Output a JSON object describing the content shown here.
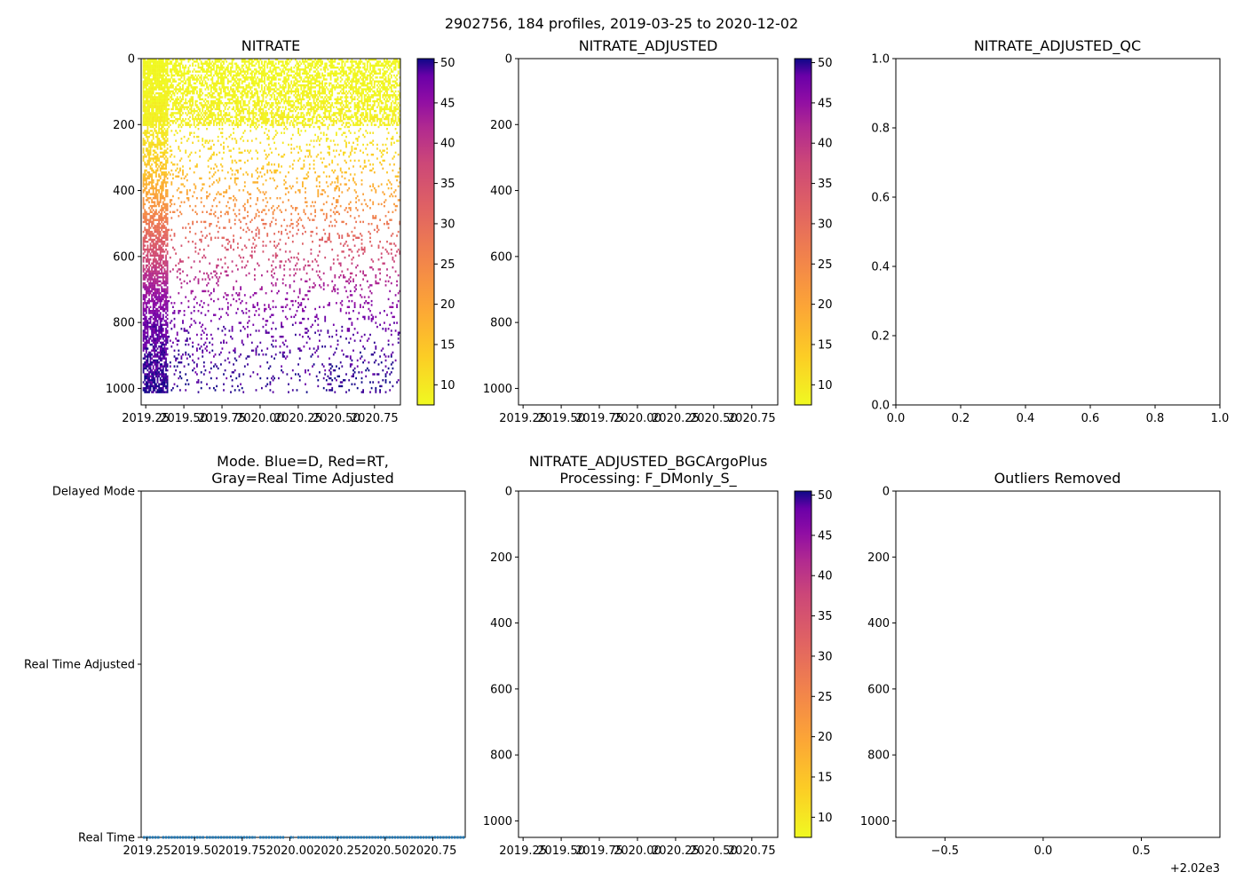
{
  "suptitle": "2902756, 184 profiles, 2019-03-25 to 2020-12-02",
  "colors": {
    "axis": "#000000",
    "mode_series": "#1f77b4"
  },
  "chart_data": [
    {
      "type": "heatmap",
      "title": "NITRATE",
      "xlim": [
        2019.22,
        2020.92
      ],
      "ylim": [
        1050,
        0
      ],
      "xticks": [
        2019.25,
        2019.5,
        2019.75,
        2020.0,
        2020.25,
        2020.5,
        2020.75
      ],
      "xtick_labels": [
        "2019.25",
        "2019.50",
        "2019.75",
        "2020.00",
        "2020.25",
        "2020.50",
        "2020.75"
      ],
      "yticks": [
        0,
        200,
        400,
        600,
        800,
        1000
      ],
      "ytick_labels": [
        "0",
        "200",
        "400",
        "600",
        "800",
        "1000"
      ],
      "has_data": true,
      "profiles": 184,
      "time_start": 2019.23,
      "time_end": 2020.92,
      "colormap": "plasma_r",
      "nitrate_depth_profile": [
        {
          "depth": 0,
          "value": 7
        },
        {
          "depth": 200,
          "value": 9
        },
        {
          "depth": 300,
          "value": 13
        },
        {
          "depth": 400,
          "value": 19
        },
        {
          "depth": 500,
          "value": 28
        },
        {
          "depth": 600,
          "value": 37
        },
        {
          "depth": 700,
          "value": 44
        },
        {
          "depth": 800,
          "value": 48
        },
        {
          "depth": 1000,
          "value": 50
        }
      ],
      "colorbar": {
        "vmin": 7.5,
        "vmax": 50.5,
        "ticks": [
          10,
          15,
          20,
          25,
          30,
          35,
          40,
          45,
          50
        ],
        "tick_labels": [
          "10",
          "15",
          "20",
          "25",
          "30",
          "35",
          "40",
          "45",
          "50"
        ]
      }
    },
    {
      "type": "heatmap",
      "title": "NITRATE_ADJUSTED",
      "xlim": [
        2019.22,
        2020.92
      ],
      "ylim": [
        1050,
        0
      ],
      "xticks": [
        2019.25,
        2019.5,
        2019.75,
        2020.0,
        2020.25,
        2020.5,
        2020.75
      ],
      "xtick_labels": [
        "2019.25",
        "2019.50",
        "2019.75",
        "2020.00",
        "2020.25",
        "2020.50",
        "2020.75"
      ],
      "yticks": [
        0,
        200,
        400,
        600,
        800,
        1000
      ],
      "ytick_labels": [
        "0",
        "200",
        "400",
        "600",
        "800",
        "1000"
      ],
      "has_data": false,
      "colorbar": {
        "vmin": 7.5,
        "vmax": 50.5,
        "ticks": [
          10,
          15,
          20,
          25,
          30,
          35,
          40,
          45,
          50
        ],
        "tick_labels": [
          "10",
          "15",
          "20",
          "25",
          "30",
          "35",
          "40",
          "45",
          "50"
        ]
      }
    },
    {
      "type": "scatter",
      "title": "NITRATE_ADJUSTED_QC",
      "xlim": [
        0,
        1
      ],
      "ylim": [
        0,
        1
      ],
      "xticks": [
        0,
        0.2,
        0.4,
        0.6,
        0.8,
        1.0
      ],
      "xtick_labels": [
        "0.0",
        "0.2",
        "0.4",
        "0.6",
        "0.8",
        "1.0"
      ],
      "yticks": [
        0,
        0.2,
        0.4,
        0.6,
        0.8,
        1.0
      ],
      "ytick_labels": [
        "0.0",
        "0.2",
        "0.4",
        "0.6",
        "0.8",
        "1.0"
      ],
      "has_data": false
    },
    {
      "type": "scatter",
      "title_lines": [
        "Mode. Blue=D, Red=RT,",
        "Gray=Real Time Adjusted"
      ],
      "xlim": [
        2019.22,
        2020.92
      ],
      "ylim": [
        0,
        2
      ],
      "xticks": [
        2019.25,
        2019.5,
        2019.75,
        2020.0,
        2020.25,
        2020.5,
        2020.75
      ],
      "xtick_labels": [
        "2019.25",
        "2019.50",
        "2019.75",
        "2020.00",
        "2020.25",
        "2020.50",
        "2020.75"
      ],
      "yticks": [
        2,
        1,
        0
      ],
      "ytick_labels": [
        "Delayed Mode",
        "Real Time Adjusted",
        "Real Time"
      ],
      "mode_value": 0,
      "series": [
        {
          "name": "Real Time",
          "y": 0,
          "segments": [
            [
              2019.23,
              2019.32
            ],
            [
              2019.33,
              2019.55
            ],
            [
              2019.56,
              2019.82
            ],
            [
              2019.84,
              2019.97
            ],
            [
              2020.0,
              2020.02
            ],
            [
              2020.04,
              2020.92
            ]
          ]
        }
      ]
    },
    {
      "type": "heatmap",
      "title_lines": [
        "NITRATE_ADJUSTED_BGCArgoPlus",
        "Processing: F_DMonly_S_"
      ],
      "xlim": [
        2019.22,
        2020.92
      ],
      "ylim": [
        1050,
        0
      ],
      "xticks": [
        2019.25,
        2019.5,
        2019.75,
        2020.0,
        2020.25,
        2020.5,
        2020.75
      ],
      "xtick_labels": [
        "2019.25",
        "2019.50",
        "2019.75",
        "2020.00",
        "2020.25",
        "2020.50",
        "2020.75"
      ],
      "yticks": [
        0,
        200,
        400,
        600,
        800,
        1000
      ],
      "ytick_labels": [
        "0",
        "200",
        "400",
        "600",
        "800",
        "1000"
      ],
      "has_data": false,
      "colorbar": {
        "vmin": 7.5,
        "vmax": 50.5,
        "ticks": [
          10,
          15,
          20,
          25,
          30,
          35,
          40,
          45,
          50
        ],
        "tick_labels": [
          "10",
          "15",
          "20",
          "25",
          "30",
          "35",
          "40",
          "45",
          "50"
        ]
      }
    },
    {
      "type": "scatter",
      "title": "Outliers Removed",
      "xlim": [
        -0.75,
        0.9
      ],
      "ylim": [
        1050,
        0
      ],
      "xticks": [
        -0.5,
        0,
        0.5
      ],
      "xtick_labels": [
        "−0.5",
        "0.0",
        "0.5"
      ],
      "yticks": [
        0,
        200,
        400,
        600,
        800,
        1000
      ],
      "ytick_labels": [
        "0",
        "200",
        "400",
        "600",
        "800",
        "1000"
      ],
      "x_offset_label": "+2.02e3",
      "has_data": false
    }
  ]
}
